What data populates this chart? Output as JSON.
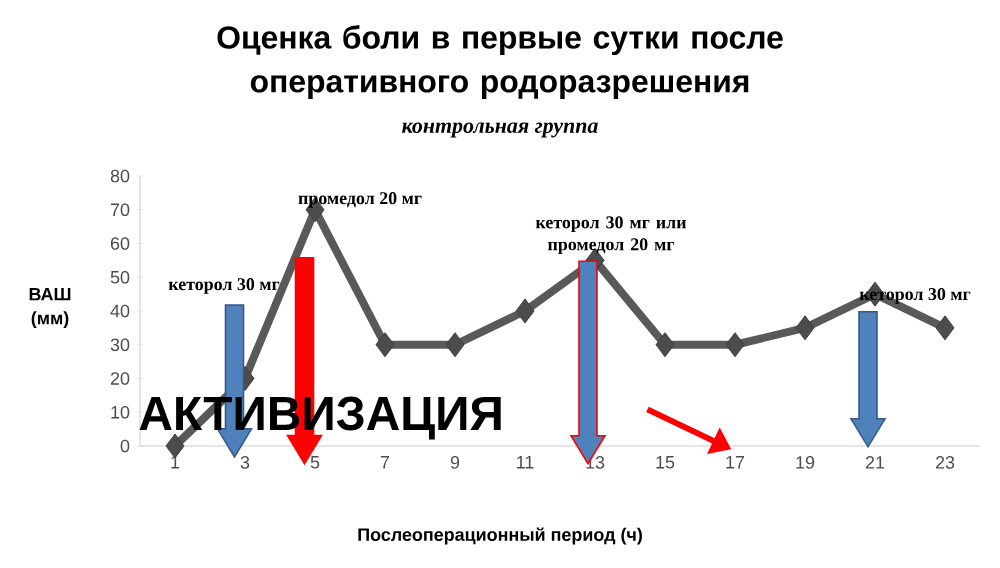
{
  "chart_data": {
    "type": "line",
    "title": "Оценка боли в первые сутки после оперативного родоразрешения",
    "subtitle": "контрольная группа",
    "xlabel": "Послеоперационный период (ч)",
    "ylabel": "ВАШ (мм)",
    "categories": [
      "1",
      "3",
      "5",
      "7",
      "9",
      "11",
      "13",
      "15",
      "17",
      "19",
      "21",
      "23"
    ],
    "series": [
      {
        "color": "#595959",
        "values": [
          0,
          20,
          70,
          30,
          30,
          40,
          55,
          30,
          30,
          35,
          45,
          35
        ]
      }
    ],
    "ylim": [
      0,
      80
    ],
    "yticks": [
      0,
      10,
      20,
      30,
      40,
      50,
      60,
      70,
      80
    ],
    "marker": "diamond",
    "line_style": "solid",
    "annotations": [
      "кеторол 30 мг",
      "промедол 20 мг",
      {
        "text": "кеторол 30 мг или промедол 20 мг",
        "x": "13",
        "y": 55
      },
      {
        "text": "кеторол 30 мг",
        "x": "21",
        "y": 45
      },
      "АКТИВИЗАЦИЯ"
    ]
  }
}
